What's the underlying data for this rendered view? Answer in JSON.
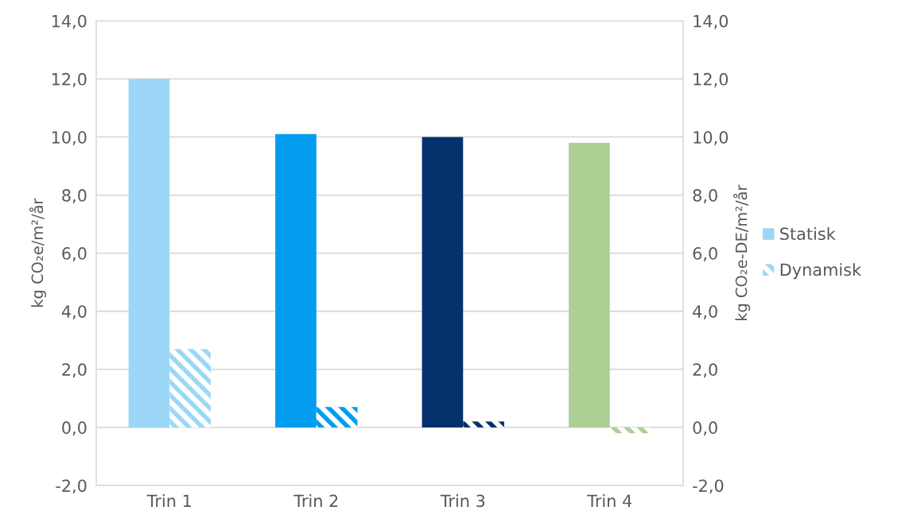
{
  "chart_data": {
    "type": "bar",
    "categories": [
      "Trin 1",
      "Trin 2",
      "Trin 3",
      "Trin 4"
    ],
    "ylabel": "kg CO₂e/m²/år",
    "y2label": "kg CO₂e-DE/m²/år",
    "series": [
      {
        "name": "Statisk",
        "colors": [
          "#9dd7f7",
          "#029def",
          "#04316c",
          "#accf93"
        ],
        "values": [
          12.0,
          10.1,
          10.0,
          9.8
        ]
      },
      {
        "name": "Dynamisk",
        "axis": "y2",
        "colors": [
          "#9dd7f7",
          "#029def",
          "#04316c",
          "#accf93"
        ],
        "values": [
          2.7,
          0.7,
          0.2,
          -0.2
        ]
      }
    ],
    "ylim": [
      -2,
      14
    ],
    "yticks": [
      {
        "value": -2,
        "label": "-2,0"
      },
      {
        "value": 0,
        "label": "0,0"
      },
      {
        "value": 2,
        "label": "2,0"
      },
      {
        "value": 4,
        "label": "4,0"
      },
      {
        "value": 6,
        "label": "6,0"
      },
      {
        "value": 8,
        "label": "8,0"
      },
      {
        "value": 10,
        "label": "10,0"
      },
      {
        "value": 12,
        "label": "12,0"
      },
      {
        "value": 14,
        "label": "14,0"
      }
    ],
    "y2lim": [
      -2,
      14
    ],
    "y2ticks": [
      {
        "value": -2,
        "label": "-2,0"
      },
      {
        "value": 0,
        "label": "0,0"
      },
      {
        "value": 2,
        "label": "2,0"
      },
      {
        "value": 4,
        "label": "4,0"
      },
      {
        "value": 6,
        "label": "6,0"
      },
      {
        "value": 8,
        "label": "8,0"
      },
      {
        "value": 10,
        "label": "10,0"
      },
      {
        "value": 12,
        "label": "12,0"
      },
      {
        "value": 14,
        "label": "14,0"
      }
    ],
    "grid": "y",
    "legend": "right"
  }
}
